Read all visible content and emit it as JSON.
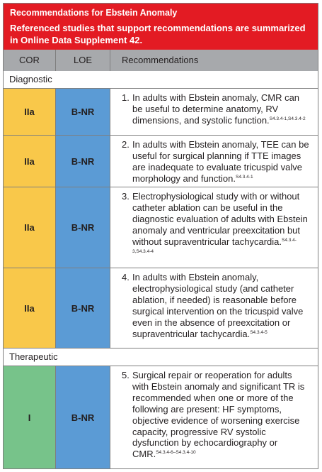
{
  "header": {
    "title": "Recommendations for Ebstein Anomaly",
    "subtitle_prefix": "Referenced studies that support recommendations are summarized in ",
    "subtitle_link": "Online Data Supplement 42",
    "subtitle_suffix": "."
  },
  "columns": {
    "cor": "COR",
    "loe": "LOE",
    "recommendations": "Recommendations"
  },
  "sections": {
    "diagnostic": "Diagnostic",
    "therapeutic": "Therapeutic"
  },
  "colors": {
    "header_red": "#e31b23",
    "column_header_gray": "#a7a9ac",
    "cor_iia_yellow": "#f9c84a",
    "cor_i_green": "#77c38a",
    "loe_blue": "#5b9bd5"
  },
  "rows": [
    {
      "cor": "IIa",
      "loe": "B-NR",
      "number": "1.",
      "text": "In adults with Ebstein anomaly, CMR can be useful to determine anatomy, RV dimensions, and systolic function.",
      "refs": "S4.3.4-1,S4.3.4-2"
    },
    {
      "cor": "IIa",
      "loe": "B-NR",
      "number": "2.",
      "text": "In adults with Ebstein anomaly, TEE can be useful for surgical planning if TTE images are inadequate to evaluate tricuspid valve morphology and function.",
      "refs": "S4.3.4-1"
    },
    {
      "cor": "IIa",
      "loe": "B-NR",
      "number": "3.",
      "text": "Electrophysiological study with or without catheter ablation can be useful in the diagnostic evaluation of adults with Ebstein anomaly and ventricular preexcitation but without supraventricular tachycardia.",
      "refs": "S4.3.4-3,S4.3.4-4"
    },
    {
      "cor": "IIa",
      "loe": "B-NR",
      "number": "4.",
      "text": "In adults with Ebstein anomaly, electrophysiological study (and catheter ablation, if needed) is reasonable before surgical intervention on the tricuspid valve even in the absence of preexcitation or supraventricular tachycardia.",
      "refs": "S4.3.4-5"
    },
    {
      "cor": "I",
      "loe": "B-NR",
      "number": "5.",
      "text": "Surgical repair or reoperation for adults with Ebstein anomaly and significant TR is recommended when one or more of the following are present: HF symptoms, objective evidence of worsening exercise capacity, progressive RV systolic dysfunction by echocardiography or CMR.",
      "refs": "S4.3.4-6–S4.3.4-10"
    }
  ]
}
